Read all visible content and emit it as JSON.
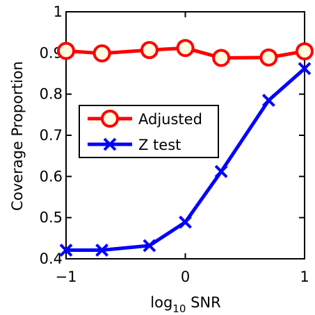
{
  "chart_data": {
    "type": "line",
    "title": "",
    "xlabel": {
      "base": "log",
      "subscript": "10",
      "rest": " SNR"
    },
    "ylabel": "Coverage Proportion",
    "xlim": [
      -1,
      1
    ],
    "ylim": [
      0.4,
      1
    ],
    "x_ticks": [
      -1,
      0,
      1
    ],
    "x_tick_labels": [
      "−1",
      "0",
      "1"
    ],
    "y_ticks": [
      0.4,
      0.5,
      0.6,
      0.7,
      0.8,
      0.9,
      1
    ],
    "y_tick_labels": [
      "0.4",
      "0.5",
      "0.6",
      "0.7",
      "0.8",
      "0.9",
      "1"
    ],
    "grid": false,
    "legend_position": "center-left",
    "x": [
      -1,
      -0.699,
      -0.301,
      0,
      0.301,
      0.699,
      1
    ],
    "series": [
      {
        "name": "Adjusted",
        "color": "#ff0000",
        "marker": "circle",
        "marker_fill": "#fffbe0",
        "values": [
          0.905,
          0.899,
          0.907,
          0.912,
          0.888,
          0.889,
          0.904
        ]
      },
      {
        "name": "Z test",
        "color": "#0000ff",
        "marker": "x",
        "values": [
          0.421,
          0.421,
          0.432,
          0.489,
          0.612,
          0.785,
          0.862
        ]
      }
    ]
  }
}
